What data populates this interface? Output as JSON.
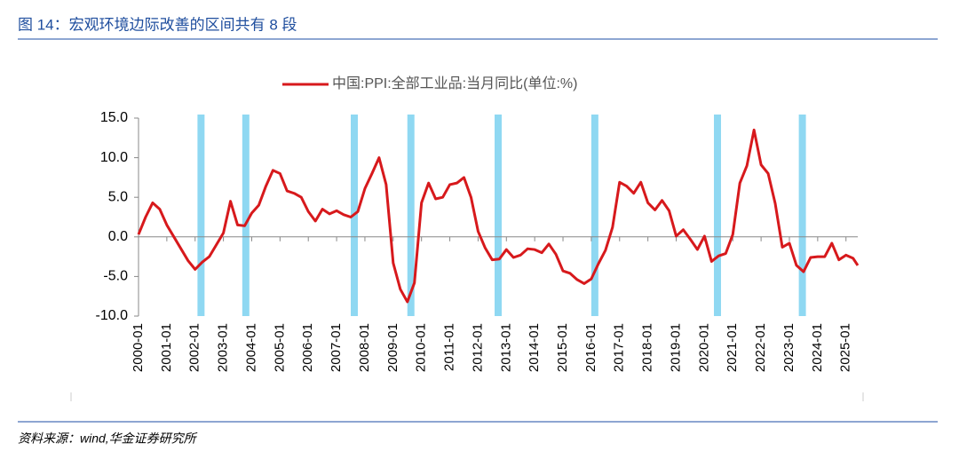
{
  "figure_title": "图 14：宏观环境边际改善的区间共有 8 段",
  "source": "资料来源：wind,华金证券研究所",
  "chart_data": {
    "type": "line",
    "x": [
      "2000-01",
      "2000-04",
      "2000-07",
      "2000-10",
      "2001-01",
      "2001-04",
      "2001-07",
      "2001-10",
      "2002-01",
      "2002-04",
      "2002-07",
      "2002-10",
      "2003-01",
      "2003-04",
      "2003-07",
      "2003-10",
      "2004-01",
      "2004-04",
      "2004-07",
      "2004-10",
      "2005-01",
      "2005-04",
      "2005-07",
      "2005-10",
      "2006-01",
      "2006-04",
      "2006-07",
      "2006-10",
      "2007-01",
      "2007-04",
      "2007-07",
      "2007-10",
      "2008-01",
      "2008-04",
      "2008-07",
      "2008-10",
      "2009-01",
      "2009-04",
      "2009-07",
      "2009-10",
      "2010-01",
      "2010-04",
      "2010-07",
      "2010-10",
      "2011-01",
      "2011-04",
      "2011-07",
      "2011-10",
      "2012-01",
      "2012-04",
      "2012-07",
      "2012-10",
      "2013-01",
      "2013-04",
      "2013-07",
      "2013-10",
      "2014-01",
      "2014-04",
      "2014-07",
      "2014-10",
      "2015-01",
      "2015-04",
      "2015-07",
      "2015-10",
      "2016-01",
      "2016-04",
      "2016-07",
      "2016-10",
      "2017-01",
      "2017-04",
      "2017-07",
      "2017-10",
      "2018-01",
      "2018-04",
      "2018-07",
      "2018-10",
      "2019-01",
      "2019-04",
      "2019-07",
      "2019-10",
      "2020-01",
      "2020-04",
      "2020-07",
      "2020-10",
      "2021-01",
      "2021-04",
      "2021-07",
      "2021-10",
      "2022-01",
      "2022-04",
      "2022-07",
      "2022-10",
      "2023-01",
      "2023-04",
      "2023-07",
      "2023-10",
      "2024-01",
      "2024-04",
      "2024-07",
      "2024-10",
      "2025-01",
      "2025-04",
      "2025-06"
    ],
    "series": [
      {
        "name": "中国:PPI:全部工业品:当月同比(单位:%)",
        "color": "#d7191c",
        "values": [
          0.3,
          2.5,
          4.3,
          3.5,
          1.5,
          0.0,
          -1.5,
          -3.0,
          -4.1,
          -3.2,
          -2.5,
          -1.0,
          0.5,
          4.5,
          1.5,
          1.4,
          3.0,
          4.0,
          6.4,
          8.4,
          8.0,
          5.8,
          5.5,
          5.0,
          3.2,
          2.0,
          3.5,
          2.9,
          3.3,
          2.8,
          2.5,
          3.2,
          6.1,
          8.0,
          10.0,
          6.6,
          -3.3,
          -6.6,
          -8.2,
          -5.8,
          4.3,
          6.8,
          4.8,
          5.0,
          6.6,
          6.8,
          7.5,
          5.0,
          0.7,
          -1.4,
          -2.9,
          -2.8,
          -1.6,
          -2.6,
          -2.3,
          -1.5,
          -1.6,
          -2.0,
          -0.9,
          -2.2,
          -4.3,
          -4.6,
          -5.4,
          -5.9,
          -5.3,
          -3.4,
          -1.7,
          1.2,
          6.9,
          6.4,
          5.5,
          6.9,
          4.3,
          3.4,
          4.6,
          3.3,
          0.1,
          0.9,
          -0.3,
          -1.6,
          0.1,
          -3.1,
          -2.4,
          -2.1,
          0.3,
          6.8,
          9.0,
          13.5,
          9.1,
          8.0,
          4.2,
          -1.3,
          -0.8,
          -3.6,
          -4.4,
          -2.6,
          -2.5,
          -2.5,
          -0.8,
          -2.9,
          -2.3,
          -2.7,
          -3.6
        ]
      }
    ],
    "xlim": [
      "2000-01",
      "2025-06"
    ],
    "xticks": [
      "2000-01",
      "2001-01",
      "2002-01",
      "2003-01",
      "2004-01",
      "2005-01",
      "2006-01",
      "2007-01",
      "2008-01",
      "2009-01",
      "2010-01",
      "2011-01",
      "2012-01",
      "2013-01",
      "2014-01",
      "2015-01",
      "2016-01",
      "2017-01",
      "2018-01",
      "2019-01",
      "2020-01",
      "2021-01",
      "2022-01",
      "2023-01",
      "2024-01",
      "2025-01"
    ],
    "ylim": [
      -10,
      15
    ],
    "yticks": [
      {
        "value": -10,
        "label": "-10.0"
      },
      {
        "value": -5,
        "label": "-5.0"
      },
      {
        "value": 0,
        "label": "0.0"
      },
      {
        "value": 5,
        "label": "5.0"
      },
      {
        "value": 10,
        "label": "10.0"
      },
      {
        "value": 15,
        "label": "15.0"
      }
    ],
    "highlight_periods": [
      [
        "2002-02",
        "2002-05"
      ],
      [
        "2003-09",
        "2003-12"
      ],
      [
        "2007-07",
        "2007-10"
      ],
      [
        "2009-07",
        "2009-10"
      ],
      [
        "2012-08",
        "2012-11"
      ],
      [
        "2016-01",
        "2016-04"
      ],
      [
        "2020-05",
        "2020-08"
      ],
      [
        "2023-05",
        "2023-08"
      ]
    ],
    "highlight_color": "#8fd8f2"
  }
}
